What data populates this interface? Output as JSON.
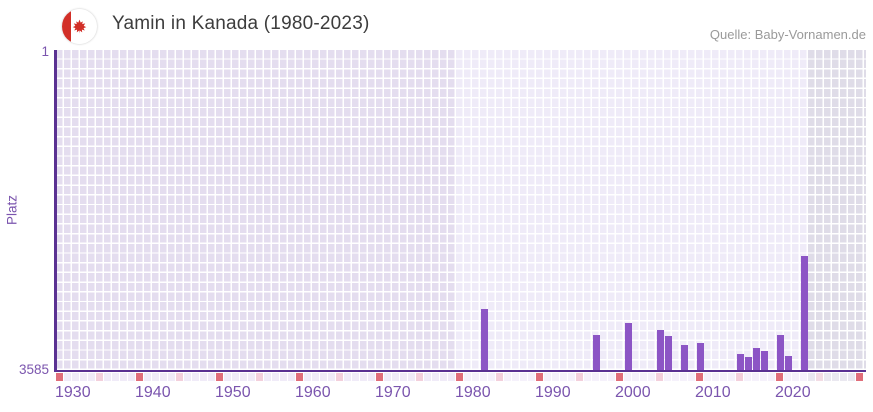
{
  "header": {
    "title": "Yamin in Kanada (1980-2023)",
    "source": "Quelle: Baby-Vornamen.de",
    "flag_icon": "canada-flag-icon"
  },
  "chart_data": {
    "type": "bar",
    "title": "Yamin in Kanada (1980-2023)",
    "ylabel": "Platz",
    "y_tick_labels": [
      "1",
      "3585"
    ],
    "ylim": [
      1,
      3585
    ],
    "y_inverted": true,
    "x_range": [
      1930,
      2030
    ],
    "x_tick_years": [
      1930,
      1940,
      1950,
      1960,
      1970,
      1980,
      1990,
      2000,
      2010,
      2020
    ],
    "data_year_range": [
      1980,
      2023
    ],
    "series_name": "Platz",
    "points": [
      {
        "year": 1983,
        "rank": 2900
      },
      {
        "year": 1997,
        "rank": 3193
      },
      {
        "year": 2001,
        "rank": 3055
      },
      {
        "year": 2005,
        "rank": 3140
      },
      {
        "year": 2006,
        "rank": 3205
      },
      {
        "year": 2008,
        "rank": 3305
      },
      {
        "year": 2010,
        "rank": 3280
      },
      {
        "year": 2015,
        "rank": 3410
      },
      {
        "year": 2016,
        "rank": 3443
      },
      {
        "year": 2017,
        "rank": 3342
      },
      {
        "year": 2018,
        "rank": 3375
      },
      {
        "year": 2020,
        "rank": 3195
      },
      {
        "year": 2021,
        "rank": 3425
      },
      {
        "year": 2023,
        "rank": 2310
      }
    ],
    "legend": null,
    "grid": true,
    "colors": {
      "bar": "#8c55c5",
      "axis": "#5a3192",
      "axis_text": "#7b55ae",
      "decade_tick": "#e06d79",
      "half_decade_tick": "#f3cfdb",
      "half_decade_tick_future": "#f3dce4",
      "strip_past": "#f0ebf8",
      "strip_range": "#f5f1fb",
      "strip_future": "#eae8f0",
      "bg_past": "#e4ddef",
      "bg_range": "#efebf8",
      "bg_future": "#dfdce8",
      "title_text": "#3d3d3d",
      "source_text": "#9a9a9a",
      "flag_red": "#d22f27"
    }
  }
}
